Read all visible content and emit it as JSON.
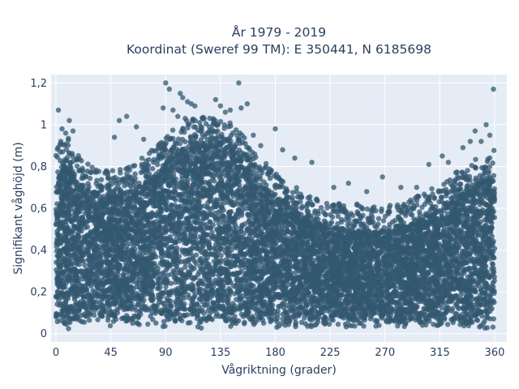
{
  "chart_data": {
    "type": "scatter",
    "title": "År 1979 - 2019",
    "subtitle": "Koordinat (Sweref 99 TM): E 350441, N 6185698",
    "xlabel": "Vågriktning (grader)",
    "ylabel": "Signifikant våghöjd (m)",
    "xlim": [
      -4,
      370
    ],
    "ylim": [
      -0.04,
      1.24
    ],
    "x_ticks": [
      0,
      45,
      90,
      135,
      180,
      225,
      270,
      315,
      360
    ],
    "x_tick_labels": [
      "0",
      "45",
      "90",
      "135",
      "180",
      "225",
      "270",
      "315",
      "360"
    ],
    "y_ticks": [
      0,
      0.2,
      0.4,
      0.6,
      0.8,
      1.0,
      1.2
    ],
    "y_tick_labels": [
      "0",
      "0,2",
      "0,4",
      "0,6",
      "0,8",
      "1",
      "1,2"
    ],
    "grid": true,
    "marker_color": "#335870",
    "background_color": "#e5ecf6",
    "series_description": "Dense cloud of wave observations for every direction 0-360 degrees; heights mostly 0.02-0.65 m",
    "upper_envelope": [
      {
        "x": 0,
        "y": 0.78
      },
      {
        "x": 10,
        "y": 0.82
      },
      {
        "x": 20,
        "y": 0.72
      },
      {
        "x": 30,
        "y": 0.68
      },
      {
        "x": 45,
        "y": 0.66
      },
      {
        "x": 60,
        "y": 0.68
      },
      {
        "x": 75,
        "y": 0.74
      },
      {
        "x": 90,
        "y": 0.82
      },
      {
        "x": 100,
        "y": 0.88
      },
      {
        "x": 115,
        "y": 0.92
      },
      {
        "x": 130,
        "y": 0.91
      },
      {
        "x": 145,
        "y": 0.89
      },
      {
        "x": 160,
        "y": 0.78
      },
      {
        "x": 175,
        "y": 0.68
      },
      {
        "x": 190,
        "y": 0.62
      },
      {
        "x": 205,
        "y": 0.55
      },
      {
        "x": 220,
        "y": 0.52
      },
      {
        "x": 240,
        "y": 0.5
      },
      {
        "x": 260,
        "y": 0.49
      },
      {
        "x": 275,
        "y": 0.5
      },
      {
        "x": 290,
        "y": 0.52
      },
      {
        "x": 305,
        "y": 0.56
      },
      {
        "x": 320,
        "y": 0.62
      },
      {
        "x": 335,
        "y": 0.68
      },
      {
        "x": 350,
        "y": 0.74
      },
      {
        "x": 360,
        "y": 0.76
      }
    ],
    "outliers": [
      {
        "x": 2,
        "y": 1.07
      },
      {
        "x": 5,
        "y": 0.98
      },
      {
        "x": 8,
        "y": 0.96
      },
      {
        "x": 11,
        "y": 1.02
      },
      {
        "x": 14,
        "y": 0.97
      },
      {
        "x": 4,
        "y": 0.92
      },
      {
        "x": 52,
        "y": 1.02
      },
      {
        "x": 58,
        "y": 1.04
      },
      {
        "x": 48,
        "y": 0.94
      },
      {
        "x": 66,
        "y": 0.99
      },
      {
        "x": 72,
        "y": 0.93
      },
      {
        "x": 84,
        "y": 0.9
      },
      {
        "x": 88,
        "y": 1.08
      },
      {
        "x": 90,
        "y": 1.2
      },
      {
        "x": 93,
        "y": 1.17
      },
      {
        "x": 96,
        "y": 1.07
      },
      {
        "x": 102,
        "y": 1.15
      },
      {
        "x": 104,
        "y": 1.13
      },
      {
        "x": 108,
        "y": 1.11
      },
      {
        "x": 111,
        "y": 1.1
      },
      {
        "x": 114,
        "y": 1.09
      },
      {
        "x": 100,
        "y": 1.04
      },
      {
        "x": 106,
        "y": 1.03
      },
      {
        "x": 118,
        "y": 1.01
      },
      {
        "x": 131,
        "y": 1.12
      },
      {
        "x": 135,
        "y": 1.09
      },
      {
        "x": 139,
        "y": 1.06
      },
      {
        "x": 143,
        "y": 1.07
      },
      {
        "x": 150,
        "y": 1.2
      },
      {
        "x": 152,
        "y": 1.08
      },
      {
        "x": 157,
        "y": 1.1
      },
      {
        "x": 162,
        "y": 0.95
      },
      {
        "x": 168,
        "y": 0.9
      },
      {
        "x": 180,
        "y": 0.98
      },
      {
        "x": 186,
        "y": 0.88
      },
      {
        "x": 196,
        "y": 0.84
      },
      {
        "x": 210,
        "y": 0.82
      },
      {
        "x": 228,
        "y": 0.7
      },
      {
        "x": 240,
        "y": 0.72
      },
      {
        "x": 255,
        "y": 0.68
      },
      {
        "x": 268,
        "y": 0.75
      },
      {
        "x": 283,
        "y": 0.7
      },
      {
        "x": 296,
        "y": 0.7
      },
      {
        "x": 306,
        "y": 0.81
      },
      {
        "x": 317,
        "y": 0.85
      },
      {
        "x": 322,
        "y": 0.82
      },
      {
        "x": 334,
        "y": 0.89
      },
      {
        "x": 340,
        "y": 0.92
      },
      {
        "x": 344,
        "y": 0.97
      },
      {
        "x": 349,
        "y": 0.92
      },
      {
        "x": 353,
        "y": 1.0
      },
      {
        "x": 356,
        "y": 0.95
      },
      {
        "x": 359,
        "y": 1.17
      },
      {
        "x": 247,
        "y": 0.62
      },
      {
        "x": 260,
        "y": 0.6
      },
      {
        "x": 287,
        "y": 0.05
      }
    ]
  }
}
